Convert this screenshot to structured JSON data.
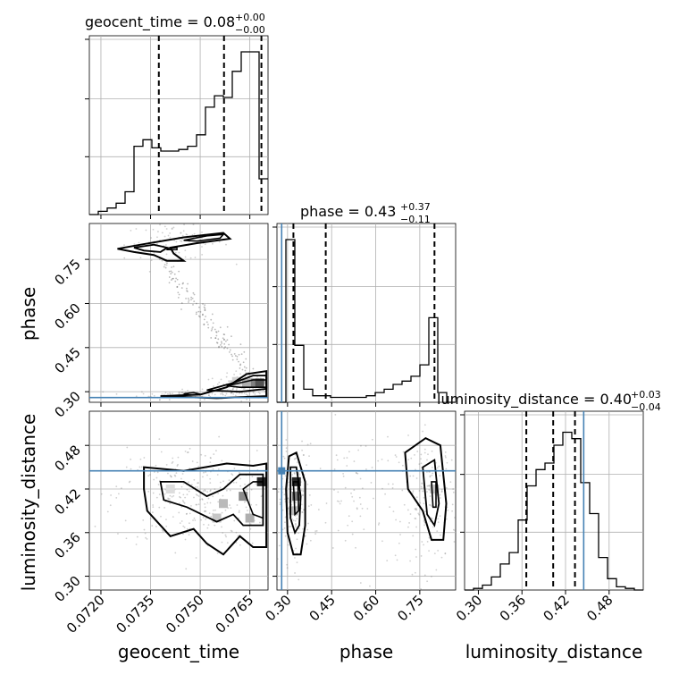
{
  "chart_data": {
    "type": "corner-plot",
    "parameters": [
      "geocent_time",
      "phase",
      "luminosity_distance"
    ],
    "axis_labels": {
      "geocent_time": "geocent_time",
      "phase": "phase",
      "luminosity_distance": "luminosity_distance"
    },
    "titles": [
      {
        "param": "geocent_time",
        "prefix": "geocent_time = 0.08",
        "sup": "+0.00",
        "sub": "−0.00"
      },
      {
        "param": "phase",
        "prefix": "phase = 0.43",
        "sup": "+0.37",
        "sub": "−0.11"
      },
      {
        "param": "luminosity_distance",
        "prefix": "luminosity_distance = 0.40",
        "sup": "+0.03",
        "sub": "−0.04"
      }
    ],
    "ranges": {
      "geocent_time": [
        0.07165,
        0.07705
      ],
      "phase": [
        0.264,
        0.872
      ],
      "luminosity_distance": [
        0.281,
        0.527
      ]
    },
    "ticks": {
      "geocent_time": [
        "0.0720",
        "0.0735",
        "0.0750",
        "0.0765"
      ],
      "phase": [
        "0.30",
        "0.45",
        "0.60",
        "0.75"
      ],
      "luminosity_distance": [
        "0.30",
        "0.36",
        "0.42",
        "0.48"
      ]
    },
    "truths": {
      "geocent_time": null,
      "phase": 0.28,
      "luminosity_distance": 0.445
    },
    "truth_color": "#4682b4",
    "histograms": {
      "geocent_time": {
        "edges_start": 0.07165,
        "bin_width": 0.00027,
        "counts": [
          0.0,
          0.02,
          0.04,
          0.07,
          0.14,
          0.42,
          0.46,
          0.41,
          0.39,
          0.39,
          0.4,
          0.42,
          0.49,
          0.66,
          0.73,
          0.72,
          0.88,
          1.0,
          1.0,
          0.22
        ],
        "quantiles": [
          0.07375,
          0.07572,
          0.07685
        ]
      },
      "phase": {
        "edges_start": 0.264,
        "bin_width": 0.0304,
        "counts": [
          0.0,
          1.0,
          0.35,
          0.08,
          0.04,
          0.04,
          0.03,
          0.03,
          0.03,
          0.03,
          0.04,
          0.06,
          0.08,
          0.11,
          0.13,
          0.16,
          0.23,
          0.52,
          0.06,
          0.0
        ],
        "quantiles": [
          0.32,
          0.43,
          0.8
        ]
      },
      "luminosity_distance": {
        "edges_start": 0.281,
        "bin_width": 0.0123,
        "counts": [
          0.0,
          0.01,
          0.03,
          0.08,
          0.16,
          0.23,
          0.43,
          0.64,
          0.74,
          0.78,
          0.89,
          0.97,
          0.93,
          0.66,
          0.47,
          0.2,
          0.07,
          0.02,
          0.01,
          0.0
        ],
        "quantiles": [
          0.366,
          0.403,
          0.433
        ]
      }
    },
    "grid": true
  }
}
